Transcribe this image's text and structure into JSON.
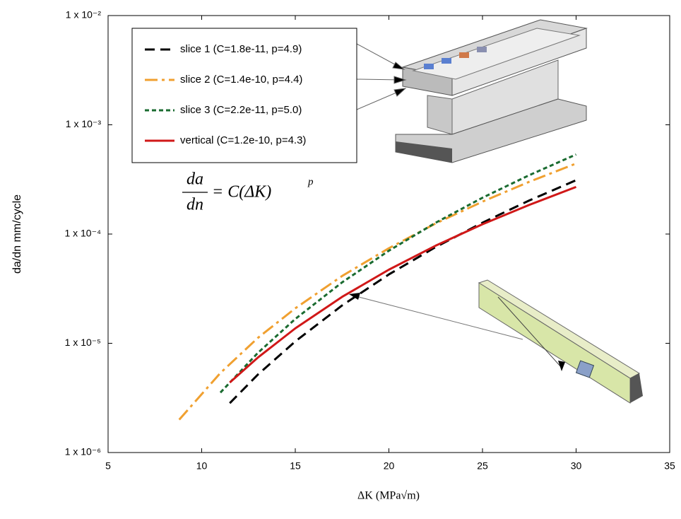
{
  "chart_data": {
    "type": "line",
    "x_label": "ΔK (MPa√m)",
    "y_label": "da/dn mm/cycle",
    "log_y": true,
    "xlim": [
      5,
      35
    ],
    "xticks": [
      5,
      10,
      15,
      20,
      25,
      30,
      35
    ],
    "ylim": [
      1e-06,
      0.01
    ],
    "yticks": [
      {
        "value": 1e-06,
        "label": "1 x 10⁻⁶"
      },
      {
        "value": 1e-05,
        "label": "1 x 10⁻⁵"
      },
      {
        "value": 0.0001,
        "label": "1 x 10⁻⁴"
      },
      {
        "value": 0.001,
        "label": "1 x 10⁻³"
      },
      {
        "value": 0.01,
        "label": "1 x 10⁻²"
      }
    ],
    "legend": "top-left",
    "equation": {
      "numerator": "da",
      "denominator": "dn",
      "rhs": "= C(ΔK)",
      "exponent": "p"
    },
    "series": [
      {
        "name": "slice 1 (C=1.8e-11, p=4.9)",
        "color": "#000000",
        "dash": "14 8",
        "x": [
          11.5,
          13,
          15,
          17.5,
          20,
          22.5,
          25,
          27.5,
          30
        ],
        "values": [
          2.83e-06,
          5.17e-06,
          1.04e-05,
          2.22e-05,
          4.27e-05,
          7.6e-05,
          0.000127,
          0.000203,
          0.000311
        ]
      },
      {
        "name": "slice 2 (C=1.4e-10, p=4.4)",
        "color": "#f0a030",
        "dash": "18 6 4 6",
        "x": [
          8.8,
          11,
          13,
          15,
          17.5,
          20,
          22.5,
          25,
          27.5,
          30
        ],
        "values": [
          2e-06,
          5.35e-06,
          1.12e-05,
          2.09e-05,
          4.13e-05,
          7.42e-05,
          0.000125,
          0.000198,
          0.000301,
          0.000442
        ]
      },
      {
        "name": "slice 3 (C=2.2e-11, p=5.0)",
        "color": "#1a6b30",
        "dash": "6 4",
        "x": [
          11,
          13,
          15,
          17.5,
          20,
          22.5,
          25,
          27.5,
          30
        ],
        "values": [
          3.54e-06,
          8.17e-06,
          1.67e-05,
          3.61e-05,
          7.04e-05,
          0.000127,
          0.000215,
          0.000346,
          0.000535
        ]
      },
      {
        "name": "vertical (C=1.2e-10, p=4.3)",
        "color": "#d01818",
        "dash": "none",
        "x": [
          11.5,
          13,
          15,
          17.5,
          20,
          22.5,
          25,
          27.5,
          30
        ],
        "values": [
          4.37e-06,
          7.4e-06,
          1.37e-05,
          2.66e-05,
          4.72e-05,
          7.83e-05,
          0.000123,
          0.000185,
          0.00027
        ]
      }
    ]
  }
}
